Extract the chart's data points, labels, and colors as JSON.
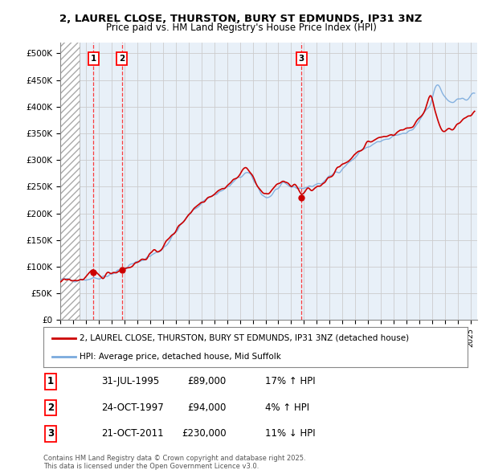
{
  "title_line1": "2, LAUREL CLOSE, THURSTON, BURY ST EDMUNDS, IP31 3NZ",
  "title_line2": "Price paid vs. HM Land Registry's House Price Index (HPI)",
  "ylim": [
    0,
    520000
  ],
  "yticks": [
    0,
    50000,
    100000,
    150000,
    200000,
    250000,
    300000,
    350000,
    400000,
    450000,
    500000
  ],
  "ytick_labels": [
    "£0",
    "£50K",
    "£100K",
    "£150K",
    "£200K",
    "£250K",
    "£300K",
    "£350K",
    "£400K",
    "£450K",
    "£500K"
  ],
  "legend_label_red": "2, LAUREL CLOSE, THURSTON, BURY ST EDMUNDS, IP31 3NZ (detached house)",
  "legend_label_blue": "HPI: Average price, detached house, Mid Suffolk",
  "sale1_date": "31-JUL-1995",
  "sale1_price": 89000,
  "sale1_hpi": "17% ↑ HPI",
  "sale1_year": 1995.58,
  "sale2_date": "24-OCT-1997",
  "sale2_price": 94000,
  "sale2_hpi": "4% ↑ HPI",
  "sale2_year": 1997.81,
  "sale3_date": "21-OCT-2011",
  "sale3_price": 230000,
  "sale3_hpi": "11% ↓ HPI",
  "sale3_year": 2011.81,
  "footnote": "Contains HM Land Registry data © Crown copyright and database right 2025.\nThis data is licensed under the Open Government Licence v3.0.",
  "grid_color": "#cccccc",
  "red_line_color": "#cc0000",
  "blue_line_color": "#7aaadd",
  "bg_color": "#ffffff",
  "plot_bg_color": "#e8f0f8",
  "hatch_region_end": 1994.5,
  "xlim_start": 1993.0,
  "xlim_end": 2025.5
}
